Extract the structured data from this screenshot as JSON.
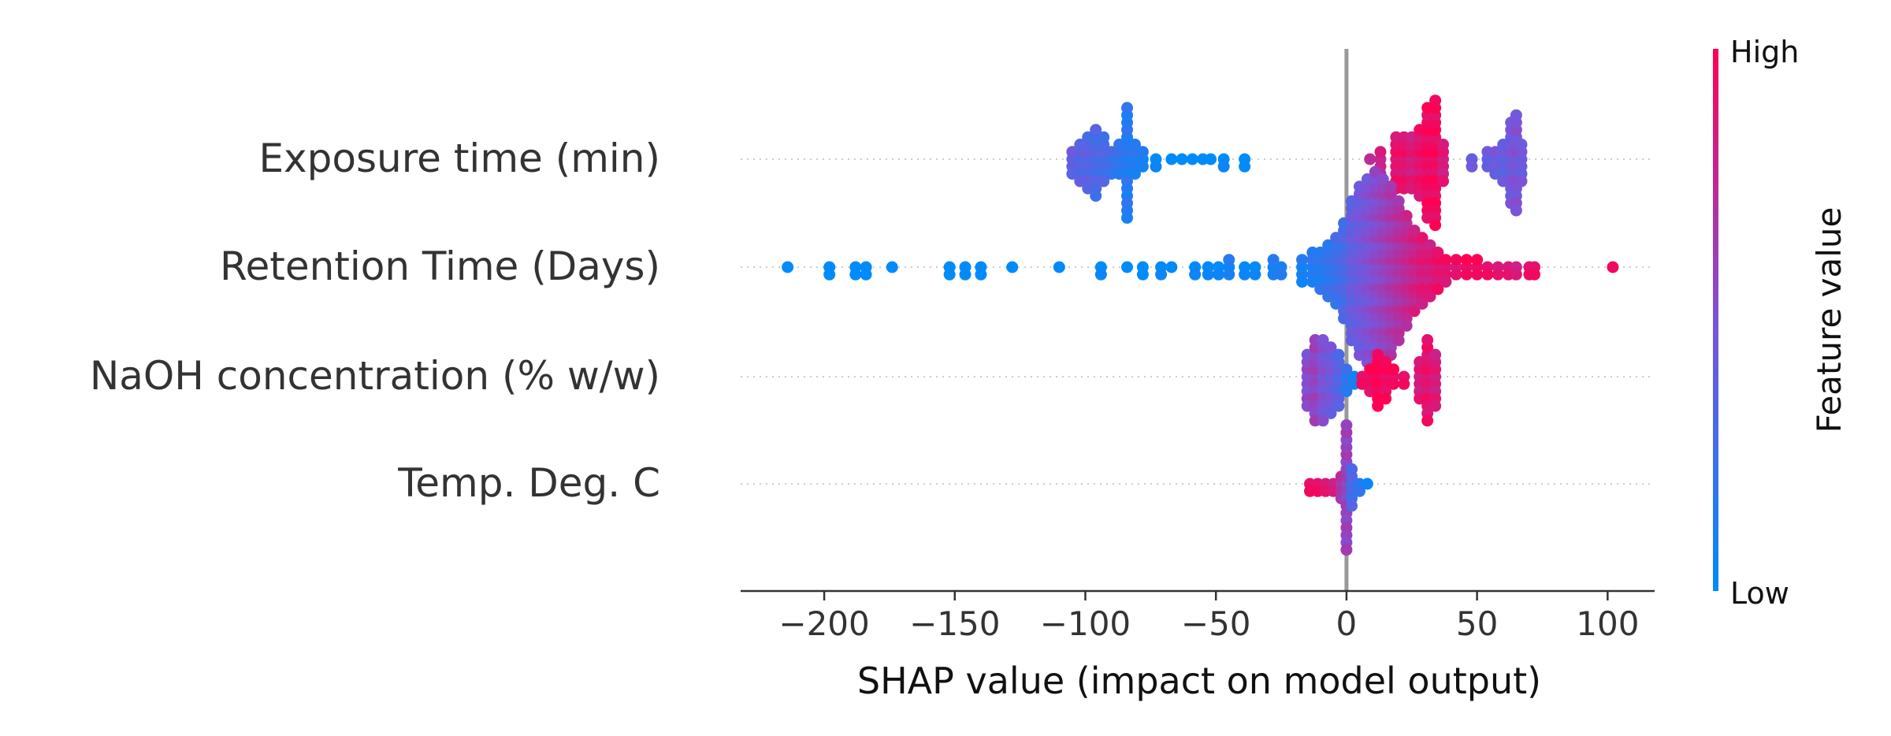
{
  "chart_data": {
    "type": "scatter",
    "subtype": "shap-beeswarm",
    "xlabel": "SHAP value (impact on model output)",
    "xlim": [
      -232,
      118
    ],
    "xticks": [
      -200,
      -150,
      -100,
      -50,
      0,
      50,
      100
    ],
    "xtick_labels": [
      "−200",
      "−150",
      "−100",
      "−50",
      "0",
      "50",
      "100"
    ],
    "features": [
      "Exposure time (min)",
      "Retention Time (Days)",
      "NaOH concentration (% w/w)",
      "Temp. Deg. C"
    ],
    "colorbar": {
      "label": "Feature value",
      "high_label": "High",
      "low_label": "Low",
      "low_color": "#008bfb",
      "high_color": "#ff0052"
    },
    "zero_line_color": "#999999",
    "series": [
      {
        "feature": "Exposure time (min)",
        "clusters": [
          {
            "x": -105,
            "n": 4,
            "color": 0.4
          },
          {
            "x": -102,
            "n": 6,
            "color": 0.35
          },
          {
            "x": -99,
            "n": 8,
            "color": 0.35
          },
          {
            "x": -96,
            "n": 10,
            "color": 0.3
          },
          {
            "x": -93,
            "n": 7,
            "color": 0.3
          },
          {
            "x": -90,
            "n": 4,
            "color": 0.25
          },
          {
            "x": -87,
            "n": 5,
            "color": 0.2
          },
          {
            "x": -84,
            "n": 16,
            "color": 0.15
          },
          {
            "x": -81,
            "n": 5,
            "color": 0.15
          },
          {
            "x": -78,
            "n": 3,
            "color": 0.1
          },
          {
            "x": -73,
            "n": 2,
            "color": 0.05
          },
          {
            "x": -67,
            "n": 1,
            "color": 0.05
          },
          {
            "x": -63,
            "n": 1,
            "color": 0.0
          },
          {
            "x": -59,
            "n": 1,
            "color": 0.0
          },
          {
            "x": -55,
            "n": 1,
            "color": 0.0
          },
          {
            "x": -52,
            "n": 1,
            "color": 0.0
          },
          {
            "x": -47,
            "n": 2,
            "color": 0.05
          },
          {
            "x": -39,
            "n": 2,
            "color": 0.0
          },
          {
            "x": 9,
            "n": 1,
            "color": 0.8
          },
          {
            "x": 13,
            "n": 4,
            "color": 0.8
          },
          {
            "x": 19,
            "n": 8,
            "color": 0.9
          },
          {
            "x": 22,
            "n": 8,
            "color": 0.9
          },
          {
            "x": 25,
            "n": 8,
            "color": 0.85
          },
          {
            "x": 28,
            "n": 10,
            "color": 0.9
          },
          {
            "x": 31,
            "n": 16,
            "color": 0.95
          },
          {
            "x": 34,
            "n": 18,
            "color": 0.95
          },
          {
            "x": 37,
            "n": 6,
            "color": 0.85
          },
          {
            "x": 48,
            "n": 2,
            "color": 0.45
          },
          {
            "x": 54,
            "n": 3,
            "color": 0.4
          },
          {
            "x": 57,
            "n": 4,
            "color": 0.45
          },
          {
            "x": 60,
            "n": 6,
            "color": 0.4
          },
          {
            "x": 63,
            "n": 12,
            "color": 0.45
          },
          {
            "x": 65,
            "n": 14,
            "color": 0.5
          },
          {
            "x": 67,
            "n": 6,
            "color": 0.45
          }
        ]
      },
      {
        "feature": "Retention Time (Days)",
        "clusters": [
          {
            "x": -214,
            "n": 1,
            "color": 0.0
          },
          {
            "x": -198,
            "n": 2,
            "color": 0.0
          },
          {
            "x": -188,
            "n": 2,
            "color": 0.0
          },
          {
            "x": -184,
            "n": 2,
            "color": 0.0
          },
          {
            "x": -174,
            "n": 1,
            "color": 0.0
          },
          {
            "x": -152,
            "n": 2,
            "color": 0.0
          },
          {
            "x": -146,
            "n": 2,
            "color": 0.0
          },
          {
            "x": -140,
            "n": 2,
            "color": 0.0
          },
          {
            "x": -128,
            "n": 1,
            "color": 0.0
          },
          {
            "x": -110,
            "n": 1,
            "color": 0.0
          },
          {
            "x": -94,
            "n": 2,
            "color": 0.05
          },
          {
            "x": -84,
            "n": 1,
            "color": 0.0
          },
          {
            "x": -78,
            "n": 2,
            "color": 0.0
          },
          {
            "x": -71,
            "n": 2,
            "color": 0.05
          },
          {
            "x": -67,
            "n": 1,
            "color": 0.0
          },
          {
            "x": -58,
            "n": 2,
            "color": 0.05
          },
          {
            "x": -53,
            "n": 2,
            "color": 0.05
          },
          {
            "x": -49,
            "n": 2,
            "color": 0.05
          },
          {
            "x": -45,
            "n": 3,
            "color": 0.1
          },
          {
            "x": -39,
            "n": 2,
            "color": 0.05
          },
          {
            "x": -35,
            "n": 2,
            "color": 0.05
          },
          {
            "x": -28,
            "n": 3,
            "color": 0.1
          },
          {
            "x": -25,
            "n": 2,
            "color": 0.15
          },
          {
            "x": -17,
            "n": 4,
            "color": 0.1
          },
          {
            "x": -13,
            "n": 5,
            "color": 0.15
          },
          {
            "x": -10,
            "n": 6,
            "color": 0.15
          },
          {
            "x": -7,
            "n": 8,
            "color": 0.2
          },
          {
            "x": -4,
            "n": 10,
            "color": 0.25
          },
          {
            "x": -1,
            "n": 14,
            "color": 0.3
          },
          {
            "x": 2,
            "n": 20,
            "color": 0.4
          },
          {
            "x": 5,
            "n": 24,
            "color": 0.45
          },
          {
            "x": 8,
            "n": 26,
            "color": 0.5
          },
          {
            "x": 11,
            "n": 28,
            "color": 0.55
          },
          {
            "x": 14,
            "n": 26,
            "color": 0.6
          },
          {
            "x": 17,
            "n": 24,
            "color": 0.65
          },
          {
            "x": 20,
            "n": 20,
            "color": 0.7
          },
          {
            "x": 23,
            "n": 16,
            "color": 0.75
          },
          {
            "x": 26,
            "n": 12,
            "color": 0.8
          },
          {
            "x": 29,
            "n": 10,
            "color": 0.85
          },
          {
            "x": 32,
            "n": 8,
            "color": 0.85
          },
          {
            "x": 35,
            "n": 6,
            "color": 0.9
          },
          {
            "x": 38,
            "n": 4,
            "color": 0.9
          },
          {
            "x": 42,
            "n": 3,
            "color": 0.9
          },
          {
            "x": 46,
            "n": 3,
            "color": 0.95
          },
          {
            "x": 50,
            "n": 3,
            "color": 0.95
          },
          {
            "x": 54,
            "n": 2,
            "color": 0.95
          },
          {
            "x": 58,
            "n": 2,
            "color": 0.9
          },
          {
            "x": 62,
            "n": 2,
            "color": 0.9
          },
          {
            "x": 65,
            "n": 2,
            "color": 0.85
          },
          {
            "x": 70,
            "n": 2,
            "color": 0.95
          },
          {
            "x": 72,
            "n": 2,
            "color": 0.95
          },
          {
            "x": 102,
            "n": 1,
            "color": 1.0
          }
        ]
      },
      {
        "feature": "NaOH concentration (% w/w)",
        "clusters": [
          {
            "x": -15,
            "n": 8,
            "color": 0.55
          },
          {
            "x": -12,
            "n": 12,
            "color": 0.6
          },
          {
            "x": -9,
            "n": 12,
            "color": 0.5
          },
          {
            "x": -6,
            "n": 10,
            "color": 0.45
          },
          {
            "x": -3,
            "n": 8,
            "color": 0.35
          },
          {
            "x": 0,
            "n": 4,
            "color": 0.2
          },
          {
            "x": 3,
            "n": 2,
            "color": 0.1
          },
          {
            "x": 6,
            "n": 2,
            "color": 0.95
          },
          {
            "x": 9,
            "n": 4,
            "color": 0.95
          },
          {
            "x": 12,
            "n": 8,
            "color": 1.0
          },
          {
            "x": 15,
            "n": 6,
            "color": 0.95
          },
          {
            "x": 18,
            "n": 3,
            "color": 0.95
          },
          {
            "x": 22,
            "n": 2,
            "color": 0.95
          },
          {
            "x": 28,
            "n": 6,
            "color": 0.85
          },
          {
            "x": 31,
            "n": 12,
            "color": 0.9
          },
          {
            "x": 34,
            "n": 8,
            "color": 0.85
          }
        ]
      },
      {
        "feature": "Temp. Deg. C",
        "clusters": [
          {
            "x": -14,
            "n": 2,
            "color": 0.95
          },
          {
            "x": -11,
            "n": 2,
            "color": 0.95
          },
          {
            "x": -8,
            "n": 2,
            "color": 0.9
          },
          {
            "x": -5,
            "n": 2,
            "color": 0.85
          },
          {
            "x": -2,
            "n": 4,
            "color": 0.7
          },
          {
            "x": 0,
            "n": 18,
            "color": 0.6
          },
          {
            "x": 2,
            "n": 6,
            "color": 0.3
          },
          {
            "x": 5,
            "n": 2,
            "color": 0.2
          },
          {
            "x": 8,
            "n": 1,
            "color": 0.1
          }
        ]
      }
    ]
  }
}
